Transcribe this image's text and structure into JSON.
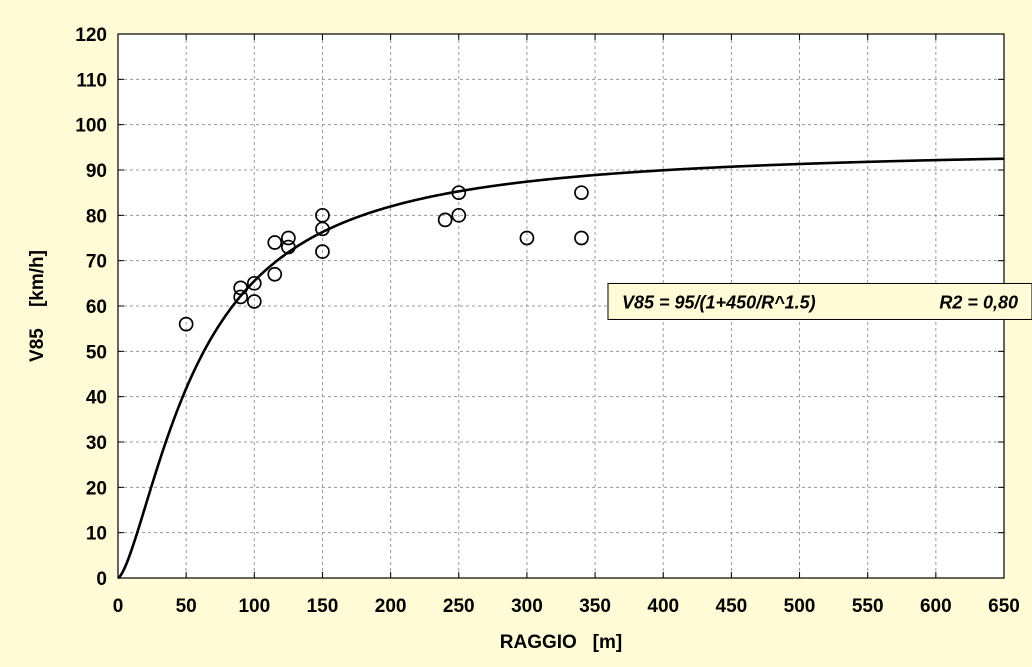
{
  "chart_data": {
    "type": "scatter",
    "title": "",
    "xlabel": "RAGGIO   [m]",
    "ylabel": "V85    [km/h]",
    "xlim": [
      0,
      650
    ],
    "ylim": [
      0,
      120
    ],
    "x_ticks": [
      0,
      50,
      100,
      150,
      200,
      250,
      300,
      350,
      400,
      450,
      500,
      550,
      600,
      650
    ],
    "y_ticks": [
      0,
      10,
      20,
      30,
      40,
      50,
      60,
      70,
      80,
      90,
      100,
      110,
      120
    ],
    "grid": true,
    "colors": {
      "background": "#fffbd6",
      "plot_area": "#ffffff",
      "grid": "#9a9a9a",
      "marks": "#000000"
    },
    "points": [
      {
        "x": 50,
        "y": 56
      },
      {
        "x": 90,
        "y": 62
      },
      {
        "x": 90,
        "y": 64
      },
      {
        "x": 100,
        "y": 61
      },
      {
        "x": 100,
        "y": 65
      },
      {
        "x": 115,
        "y": 67
      },
      {
        "x": 115,
        "y": 74
      },
      {
        "x": 125,
        "y": 73
      },
      {
        "x": 125,
        "y": 75
      },
      {
        "x": 150,
        "y": 72
      },
      {
        "x": 150,
        "y": 77
      },
      {
        "x": 150,
        "y": 80
      },
      {
        "x": 240,
        "y": 79
      },
      {
        "x": 250,
        "y": 80
      },
      {
        "x": 250,
        "y": 85
      },
      {
        "x": 300,
        "y": 75
      },
      {
        "x": 340,
        "y": 75
      },
      {
        "x": 340,
        "y": 85
      }
    ],
    "fit": {
      "a": 95,
      "b": 450,
      "p": 1.5
    },
    "annotation": {
      "equation": "V85 = 95/(1+450/R^1.5)",
      "r2": "R2 = 0,80",
      "x": 515,
      "y": 61
    }
  }
}
